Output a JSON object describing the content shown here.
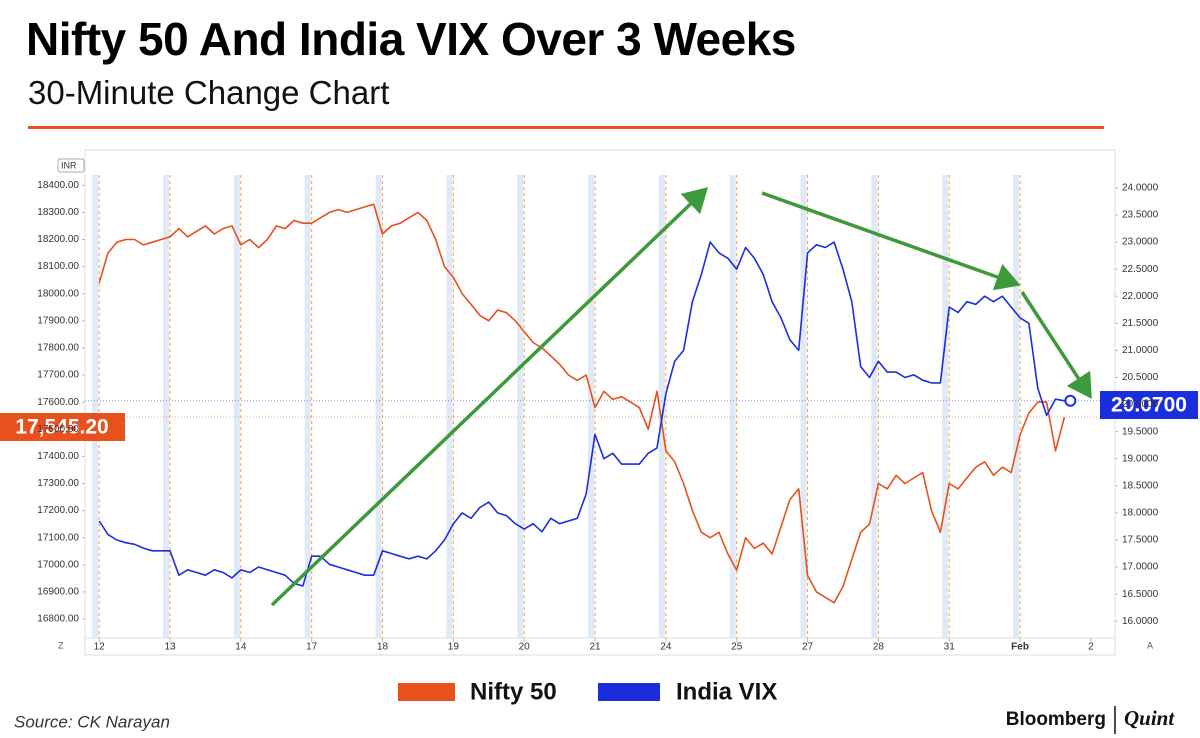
{
  "title": "Nifty 50 And India VIX Over 3 Weeks",
  "subtitle": "30-Minute Change Chart",
  "source": "Source: CK Narayan",
  "logo": [
    "Bloomberg",
    "Quint"
  ],
  "chart_data": {
    "type": "line",
    "currency": "INR",
    "axis_buttons": [
      "Z",
      "A"
    ],
    "xlim": [
      -0.2,
      14.34
    ],
    "xticks": [
      {
        "value": 0,
        "label": "12"
      },
      {
        "value": 1,
        "label": "13"
      },
      {
        "value": 2,
        "label": "14"
      },
      {
        "value": 3,
        "label": "17"
      },
      {
        "value": 4,
        "label": "18"
      },
      {
        "value": 5,
        "label": "19"
      },
      {
        "value": 6,
        "label": "20"
      },
      {
        "value": 7,
        "label": "21"
      },
      {
        "value": 8,
        "label": "24"
      },
      {
        "value": 9,
        "label": "25"
      },
      {
        "value": 10,
        "label": "27"
      },
      {
        "value": 11,
        "label": "28"
      },
      {
        "value": 12,
        "label": "31"
      },
      {
        "value": 13,
        "label": "Feb"
      },
      {
        "value": 14,
        "label": "2"
      }
    ],
    "ylim": [
      16730,
      18530
    ],
    "yticks": [
      {
        "value": 16800,
        "label": "16800.00"
      },
      {
        "value": 16900,
        "label": "16900.00"
      },
      {
        "value": 17000,
        "label": "17000.00"
      },
      {
        "value": 17100,
        "label": "17100.00"
      },
      {
        "value": 17200,
        "label": "17200.00"
      },
      {
        "value": 17300,
        "label": "17300.00"
      },
      {
        "value": 17400,
        "label": "17400.00"
      },
      {
        "value": 17500,
        "label": "17500.00"
      },
      {
        "value": 17600,
        "label": "17600.00"
      },
      {
        "value": 17700,
        "label": "17700.00"
      },
      {
        "value": 17800,
        "label": "17800.00"
      },
      {
        "value": 17900,
        "label": "17900.00"
      },
      {
        "value": 18000,
        "label": "18000.00"
      },
      {
        "value": 18100,
        "label": "18100.00"
      },
      {
        "value": 18200,
        "label": "18200.00"
      },
      {
        "value": 18300,
        "label": "18300.00"
      },
      {
        "value": 18400,
        "label": "18400.00"
      }
    ],
    "y2lim": [
      15.69,
      24.7
    ],
    "y2ticks": [
      {
        "value": 16,
        "label": "16.0000"
      },
      {
        "value": 16.5,
        "label": "16.5000"
      },
      {
        "value": 17,
        "label": "17.0000"
      },
      {
        "value": 17.5,
        "label": "17.5000"
      },
      {
        "value": 18,
        "label": "18.0000"
      },
      {
        "value": 18.5,
        "label": "18.5000"
      },
      {
        "value": 19,
        "label": "19.0000"
      },
      {
        "value": 19.5,
        "label": "19.5000"
      },
      {
        "value": 20,
        "label": "20.0000"
      },
      {
        "value": 20.5,
        "label": "20.5000"
      },
      {
        "value": 21,
        "label": "21.0000"
      },
      {
        "value": 21.5,
        "label": "21.5000"
      },
      {
        "value": 22,
        "label": "22.0000"
      },
      {
        "value": 22.5,
        "label": "22.5000"
      },
      {
        "value": 23,
        "label": "23.0000"
      },
      {
        "value": 23.5,
        "label": "23.5000"
      },
      {
        "value": 24,
        "label": "24.0000"
      }
    ],
    "series": [
      {
        "name": "Nifty 50",
        "color": "#e8501e",
        "last_label": "17,545.20",
        "x": [
          0,
          0.125,
          0.25,
          0.375,
          0.5,
          0.625,
          0.75,
          0.875,
          1,
          1.125,
          1.25,
          1.375,
          1.5,
          1.625,
          1.75,
          1.875,
          2,
          2.125,
          2.25,
          2.375,
          2.5,
          2.625,
          2.75,
          2.875,
          3,
          3.125,
          3.25,
          3.375,
          3.5,
          3.625,
          3.75,
          3.875,
          4,
          4.125,
          4.25,
          4.375,
          4.5,
          4.625,
          4.75,
          4.875,
          5,
          5.125,
          5.25,
          5.375,
          5.5,
          5.625,
          5.75,
          5.875,
          6,
          6.125,
          6.25,
          6.375,
          6.5,
          6.625,
          6.75,
          6.875,
          7,
          7.125,
          7.25,
          7.375,
          7.5,
          7.625,
          7.75,
          7.875,
          8,
          8.125,
          8.25,
          8.375,
          8.5,
          8.625,
          8.75,
          8.875,
          9,
          9.125,
          9.25,
          9.375,
          9.5,
          9.625,
          9.75,
          9.875,
          10,
          10.125,
          10.25,
          10.375,
          10.5,
          10.625,
          10.75,
          10.875,
          11,
          11.125,
          11.25,
          11.375,
          11.5,
          11.625,
          11.75,
          11.875,
          12,
          12.125,
          12.25,
          12.375,
          12.5,
          12.625,
          12.75,
          12.875,
          13,
          13.125,
          13.25,
          13.375,
          13.5,
          13.625
        ],
        "values": [
          18040,
          18150,
          18190,
          18200,
          18200,
          18180,
          18190,
          18200,
          18210,
          18240,
          18210,
          18230,
          18250,
          18220,
          18240,
          18250,
          18180,
          18200,
          18170,
          18200,
          18250,
          18240,
          18270,
          18260,
          18260,
          18280,
          18300,
          18310,
          18300,
          18310,
          18320,
          18330,
          18220,
          18250,
          18260,
          18280,
          18300,
          18270,
          18200,
          18100,
          18060,
          18000,
          17960,
          17920,
          17900,
          17940,
          17930,
          17900,
          17860,
          17820,
          17800,
          17770,
          17740,
          17700,
          17680,
          17700,
          17580,
          17640,
          17610,
          17620,
          17600,
          17580,
          17500,
          17640,
          17420,
          17380,
          17300,
          17200,
          17120,
          17100,
          17120,
          17040,
          16980,
          17100,
          17060,
          17080,
          17040,
          17140,
          17240,
          17280,
          16960,
          16900,
          16880,
          16860,
          16920,
          17020,
          17120,
          17150,
          17300,
          17280,
          17330,
          17300,
          17320,
          17340,
          17200,
          17120,
          17300,
          17280,
          17320,
          17360,
          17380,
          17330,
          17360,
          17340,
          17480,
          17560,
          17600,
          17600,
          17420,
          17545.2
        ]
      },
      {
        "name": "India VIX",
        "color": "#1a2ee0",
        "axis": "y2",
        "last_label": "20.0700",
        "x": [
          0,
          0.125,
          0.25,
          0.375,
          0.5,
          0.625,
          0.75,
          0.875,
          1,
          1.125,
          1.25,
          1.375,
          1.5,
          1.625,
          1.75,
          1.875,
          2,
          2.125,
          2.25,
          2.375,
          2.5,
          2.625,
          2.75,
          2.875,
          3,
          3.125,
          3.25,
          3.375,
          3.5,
          3.625,
          3.75,
          3.875,
          4,
          4.125,
          4.25,
          4.375,
          4.5,
          4.625,
          4.75,
          4.875,
          5,
          5.125,
          5.25,
          5.375,
          5.5,
          5.625,
          5.75,
          5.875,
          6,
          6.125,
          6.25,
          6.375,
          6.5,
          6.625,
          6.75,
          6.875,
          7,
          7.125,
          7.25,
          7.375,
          7.5,
          7.625,
          7.75,
          7.875,
          8,
          8.125,
          8.25,
          8.375,
          8.5,
          8.625,
          8.75,
          8.875,
          9,
          9.125,
          9.25,
          9.375,
          9.5,
          9.625,
          9.75,
          9.875,
          10,
          10.125,
          10.25,
          10.375,
          10.5,
          10.625,
          10.75,
          10.875,
          11,
          11.125,
          11.25,
          11.375,
          11.5,
          11.625,
          11.75,
          11.875,
          12,
          12.125,
          12.25,
          12.375,
          12.5,
          12.625,
          12.75,
          12.875,
          13,
          13.125,
          13.25,
          13.375,
          13.5,
          13.625
        ],
        "values": [
          17.85,
          17.6,
          17.5,
          17.45,
          17.42,
          17.35,
          17.3,
          17.3,
          17.3,
          16.85,
          16.95,
          16.9,
          16.85,
          16.95,
          16.9,
          16.8,
          16.95,
          16.9,
          17.0,
          16.95,
          16.9,
          16.85,
          16.7,
          16.65,
          17.2,
          17.2,
          17.05,
          17.0,
          16.95,
          16.9,
          16.85,
          16.85,
          17.3,
          17.25,
          17.2,
          17.15,
          17.2,
          17.15,
          17.3,
          17.5,
          17.8,
          18.0,
          17.9,
          18.1,
          18.2,
          18.0,
          17.95,
          17.8,
          17.7,
          17.8,
          17.65,
          17.9,
          17.8,
          17.85,
          17.9,
          18.35,
          19.45,
          19.0,
          19.1,
          18.9,
          18.9,
          18.9,
          19.1,
          19.2,
          20.2,
          20.8,
          21.0,
          21.9,
          22.4,
          23.0,
          22.8,
          22.7,
          22.5,
          22.9,
          22.7,
          22.4,
          21.9,
          21.6,
          21.2,
          21.0,
          22.8,
          22.95,
          22.9,
          23.0,
          22.5,
          21.9,
          20.7,
          20.5,
          20.8,
          20.6,
          20.6,
          20.5,
          20.55,
          20.45,
          20.4,
          20.4,
          21.8,
          21.7,
          21.9,
          21.85,
          22.0,
          21.9,
          22.0,
          21.8,
          21.6,
          21.5,
          20.3,
          19.8,
          20.1,
          20.07
        ]
      }
    ]
  }
}
